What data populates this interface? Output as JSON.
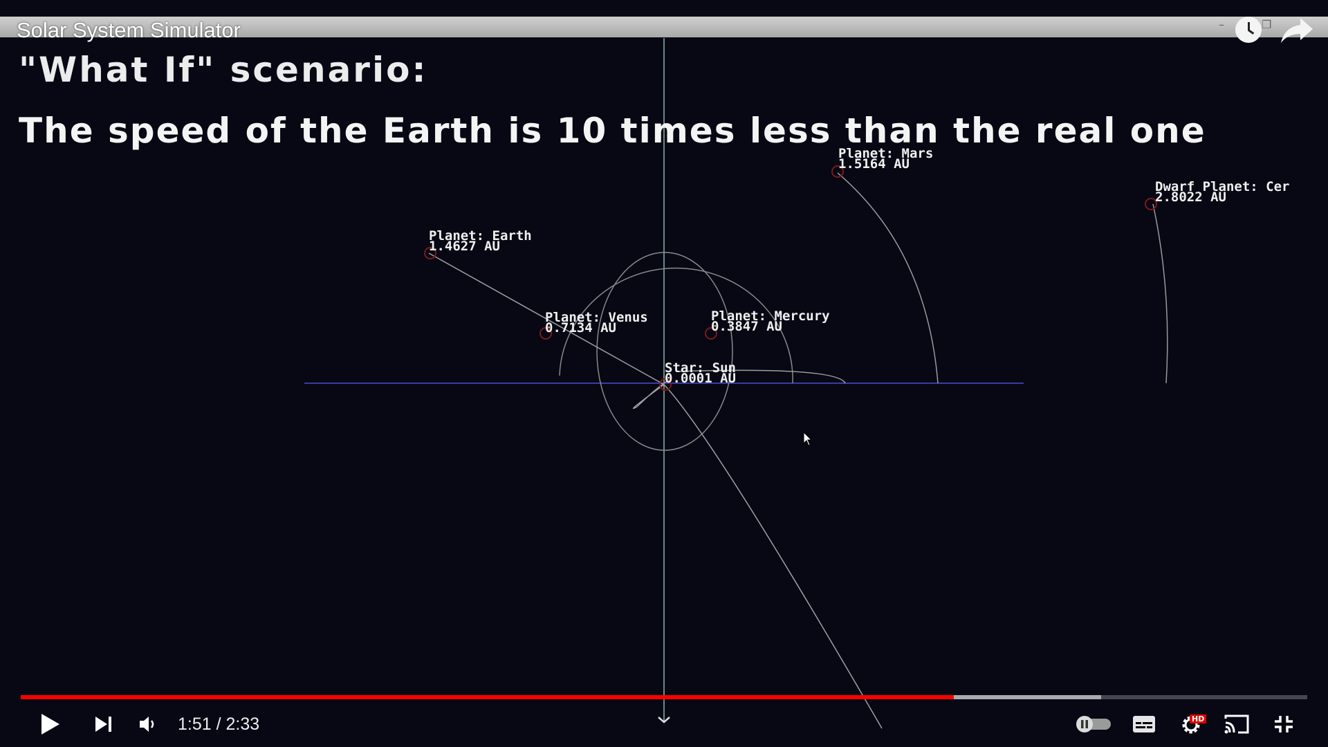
{
  "window": {
    "title": "Solar System Simulator"
  },
  "scenario": {
    "heading": "\"What If\" scenario:",
    "description": "The speed of the Earth is 10 times less than the real one"
  },
  "bodies": [
    {
      "id": "earth",
      "type": "Planet",
      "name": "Earth",
      "label": "Planet: Earth",
      "distance": "1.4627 AU"
    },
    {
      "id": "venus",
      "type": "Planet",
      "name": "Venus",
      "label": "Planet: Venus",
      "distance": "0.7134 AU"
    },
    {
      "id": "mercury",
      "type": "Planet",
      "name": "Mercury",
      "label": "Planet: Mercury",
      "distance": "0.3847 AU"
    },
    {
      "id": "sun",
      "type": "Star",
      "name": "Sun",
      "label": "Star: Sun",
      "distance": "0.0001 AU"
    },
    {
      "id": "mars",
      "type": "Planet",
      "name": "Mars",
      "label": "Planet: Mars",
      "distance": "1.5164 AU"
    },
    {
      "id": "ceres",
      "type": "Dwarf Planet",
      "name": "Ceres",
      "label": "Dwarf Planet: Cer",
      "distance": "2.8022 AU"
    }
  ],
  "player": {
    "current_time": "1:51",
    "duration": "2:33",
    "time_text": "1:51 / 2:33",
    "played_fraction": 0.7255,
    "buffered_fraction": 0.8398,
    "hd_badge": "HD",
    "icons": {
      "play": "play-icon",
      "next": "next-icon",
      "volume": "volume-icon",
      "autoplay": "autoplay-toggle-icon",
      "subtitles": "subtitles-icon",
      "settings": "settings-gear-icon",
      "cast": "cast-icon",
      "exit_fullscreen": "exit-fullscreen-icon",
      "watch_later": "watch-later-icon",
      "share": "share-icon",
      "chapter": "chevron-down-icon"
    },
    "colors": {
      "played": "#ff0000",
      "hd_badge": "#e00000"
    }
  }
}
